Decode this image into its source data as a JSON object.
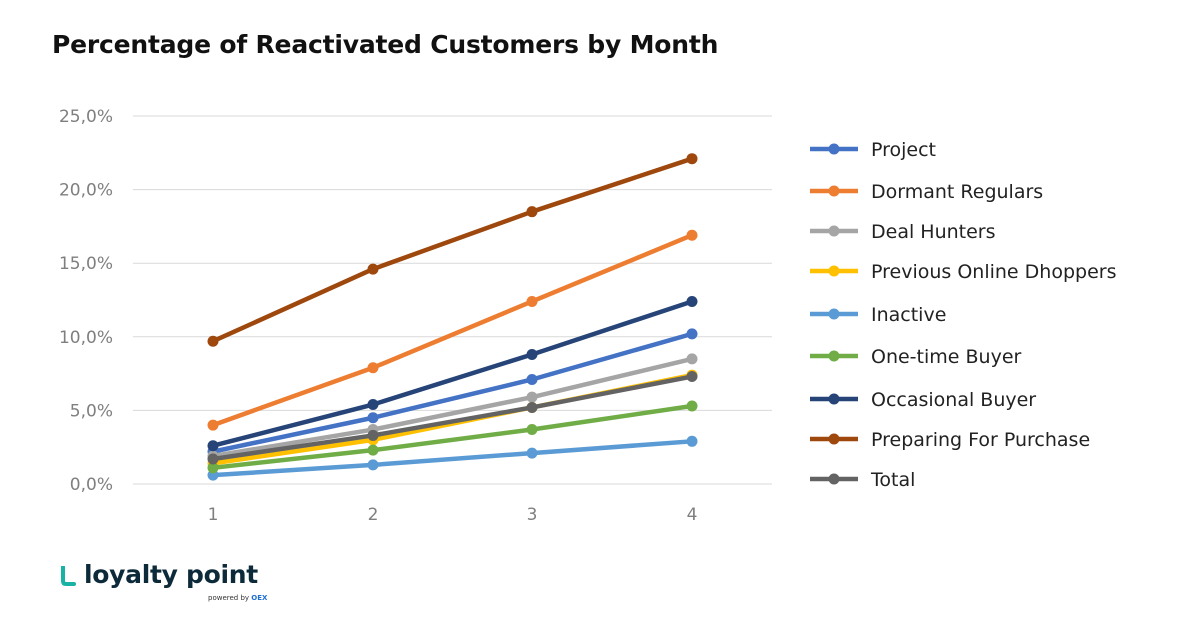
{
  "header": {
    "title": "Percentage of Reactivated Customers by Month"
  },
  "brand": {
    "name": "loyalty point",
    "powered_by": "powered by",
    "partner": "OEX",
    "accent": "#19b3a6"
  },
  "chart_data": {
    "type": "line",
    "title": "Percentage of Reactivated Customers by Month",
    "xlabel": "",
    "ylabel": "",
    "x": [
      1,
      2,
      3,
      4
    ],
    "x_tick_labels": [
      "1",
      "2",
      "3",
      "4"
    ],
    "ylim": [
      0,
      25
    ],
    "y_ticks": [
      0,
      5,
      10,
      15,
      20,
      25
    ],
    "y_tick_labels": [
      "0,0%",
      "5,0%",
      "10,0%",
      "15,0%",
      "20,0%",
      "25,0%"
    ],
    "grid": "horizontal",
    "legend_position": "right",
    "series": [
      {
        "name": "Project",
        "color": "#4472c4",
        "values": [
          2.2,
          4.5,
          7.1,
          10.2
        ]
      },
      {
        "name": "Dormant Regulars",
        "color": "#ed7d31",
        "values": [
          4.0,
          7.9,
          12.4,
          16.9
        ]
      },
      {
        "name": "Deal Hunters",
        "color": "#a5a5a5",
        "values": [
          1.9,
          3.7,
          5.9,
          8.5
        ]
      },
      {
        "name": "Previous Online Dhoppers",
        "color": "#ffc000",
        "values": [
          1.4,
          3.0,
          5.2,
          7.4
        ]
      },
      {
        "name": "Inactive",
        "color": "#5b9bd5",
        "values": [
          0.6,
          1.3,
          2.1,
          2.9
        ]
      },
      {
        "name": "One-time Buyer",
        "color": "#70ad47",
        "values": [
          1.1,
          2.3,
          3.7,
          5.3
        ]
      },
      {
        "name": "Occasional Buyer",
        "color": "#264478",
        "values": [
          2.6,
          5.4,
          8.8,
          12.4
        ]
      },
      {
        "name": "Preparing For Purchase",
        "color": "#9e480e",
        "values": [
          9.7,
          14.6,
          18.5,
          22.1
        ]
      },
      {
        "name": "Total",
        "color": "#636363",
        "values": [
          1.7,
          3.3,
          5.2,
          7.3
        ]
      }
    ]
  }
}
